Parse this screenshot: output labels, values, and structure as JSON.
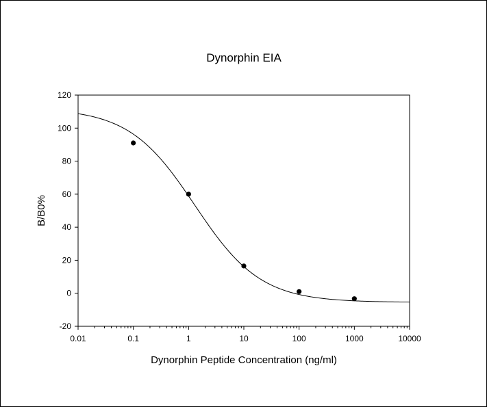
{
  "chart_data": {
    "type": "scatter",
    "title": "Dynorphin EIA",
    "xlabel": "Dynorphin Peptide Concentration (ng/ml)",
    "ylabel": "B/B0%",
    "x_scale": "log",
    "xlim": [
      0.01,
      10000
    ],
    "ylim": [
      -20,
      120
    ],
    "x_ticks": [
      0.01,
      0.1,
      1,
      10,
      100,
      1000,
      10000
    ],
    "x_tick_labels": [
      "0.01",
      "0.1",
      "1",
      "10",
      "100",
      "1000",
      "10000"
    ],
    "y_ticks": [
      -20,
      0,
      20,
      40,
      60,
      80,
      100,
      120
    ],
    "y_tick_labels": [
      "-20",
      "0",
      "20",
      "40",
      "60",
      "80",
      "100",
      "120"
    ],
    "grid": false,
    "legend": "none",
    "points": {
      "x": [
        0.1,
        1,
        10,
        100,
        1000
      ],
      "y": [
        91,
        60,
        16.5,
        1,
        -3.3
      ]
    },
    "fit_curve": {
      "model": "4-parameter logistic",
      "top": 112,
      "bottom": -5.5,
      "ec50": 1.3,
      "hill_slope": 0.73
    },
    "colors": {
      "marker": "#000000",
      "line": "#000000",
      "background": "#ffffff"
    }
  }
}
